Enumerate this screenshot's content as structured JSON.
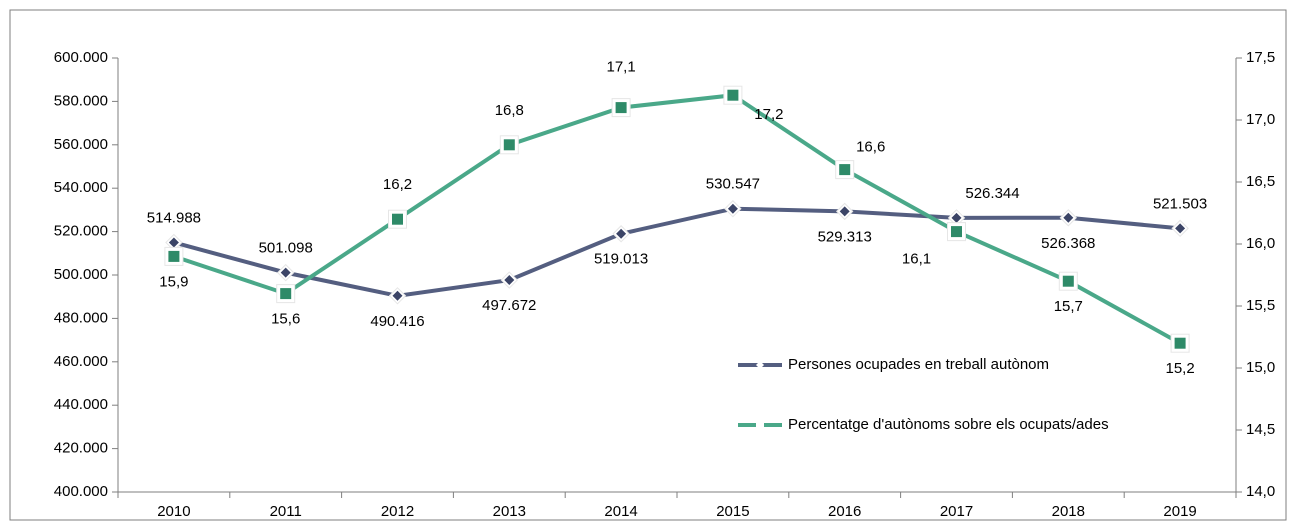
{
  "chart_data": {
    "type": "line",
    "categories": [
      "2010",
      "2011",
      "2012",
      "2013",
      "2014",
      "2015",
      "2016",
      "2017",
      "2018",
      "2019"
    ],
    "series": [
      {
        "name": "Persones ocupades en treball autònom",
        "color": "#545e80",
        "values": [
          514988,
          501098,
          490416,
          497672,
          519013,
          530547,
          529313,
          526344,
          526368,
          521503
        ],
        "value_labels": [
          "514.988",
          "501.098",
          "490.416",
          "497.672",
          "519.013",
          "530.547",
          "529.313",
          "526.344",
          "526.368",
          "521.503"
        ]
      },
      {
        "name": "Percentatge d'autònoms sobre els ocupats/ades",
        "color": "#4aa889",
        "axis": "y2",
        "values": [
          15.9,
          15.6,
          16.2,
          16.8,
          17.1,
          17.2,
          16.6,
          16.1,
          15.7,
          15.2
        ],
        "value_labels": [
          "15,9",
          "15,6",
          "16,2",
          "16,8",
          "17,1",
          "17,2",
          "16,6",
          "16,1",
          "15,7",
          "15,2"
        ]
      }
    ],
    "ylim": [
      400000,
      600000
    ],
    "yticks": [
      {
        "value": 400000,
        "label": "400.000"
      },
      {
        "value": 420000,
        "label": "420.000"
      },
      {
        "value": 440000,
        "label": "440.000"
      },
      {
        "value": 460000,
        "label": "460.000"
      },
      {
        "value": 480000,
        "label": "480.000"
      },
      {
        "value": 500000,
        "label": "500.000"
      },
      {
        "value": 520000,
        "label": "520.000"
      },
      {
        "value": 540000,
        "label": "540.000"
      },
      {
        "value": 560000,
        "label": "560.000"
      },
      {
        "value": 580000,
        "label": "580.000"
      },
      {
        "value": 600000,
        "label": "600.000"
      }
    ],
    "y2lim": [
      14,
      17.5
    ],
    "y2ticks": [
      {
        "value": 14,
        "label": "14,0"
      },
      {
        "value": 14.5,
        "label": "14,5"
      },
      {
        "value": 15,
        "label": "15,0"
      },
      {
        "value": 15.5,
        "label": "15,5"
      },
      {
        "value": 16,
        "label": "16,0"
      },
      {
        "value": 16.5,
        "label": "16,5"
      },
      {
        "value": 17,
        "label": "17,0"
      },
      {
        "value": 17.5,
        "label": "17,5"
      }
    ],
    "grid": false
  }
}
